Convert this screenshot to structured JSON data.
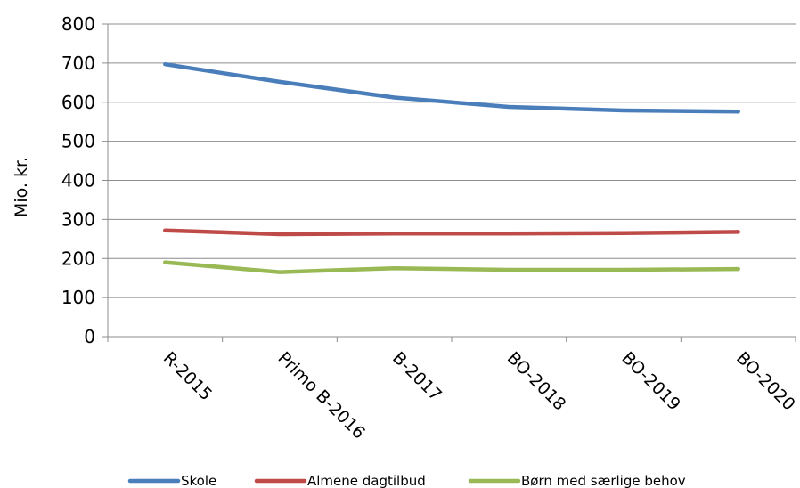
{
  "chart_data": {
    "type": "line",
    "title": "",
    "xlabel": "",
    "ylabel": "Mio. kr.",
    "ylim": [
      0,
      800
    ],
    "yticks": [
      "0",
      "100",
      "200",
      "300",
      "400",
      "500",
      "600",
      "700",
      "800"
    ],
    "categories": [
      "R-2015",
      "Primo B-2016",
      "B-2017",
      "BO-2018",
      "BO-2019",
      "BO-2020"
    ],
    "series": [
      {
        "name": "Skole",
        "color": "#4a7ebb",
        "values": [
          697,
          652,
          612,
          588,
          579,
          576
        ]
      },
      {
        "name": "Almene dagtilbud",
        "color": "#be4b48",
        "values": [
          272,
          262,
          264,
          264,
          265,
          268
        ]
      },
      {
        "name": "Børn med særlige behov",
        "color": "#98b954",
        "values": [
          190,
          165,
          175,
          171,
          171,
          173
        ]
      }
    ],
    "grid": true,
    "legend_position": "bottom"
  }
}
